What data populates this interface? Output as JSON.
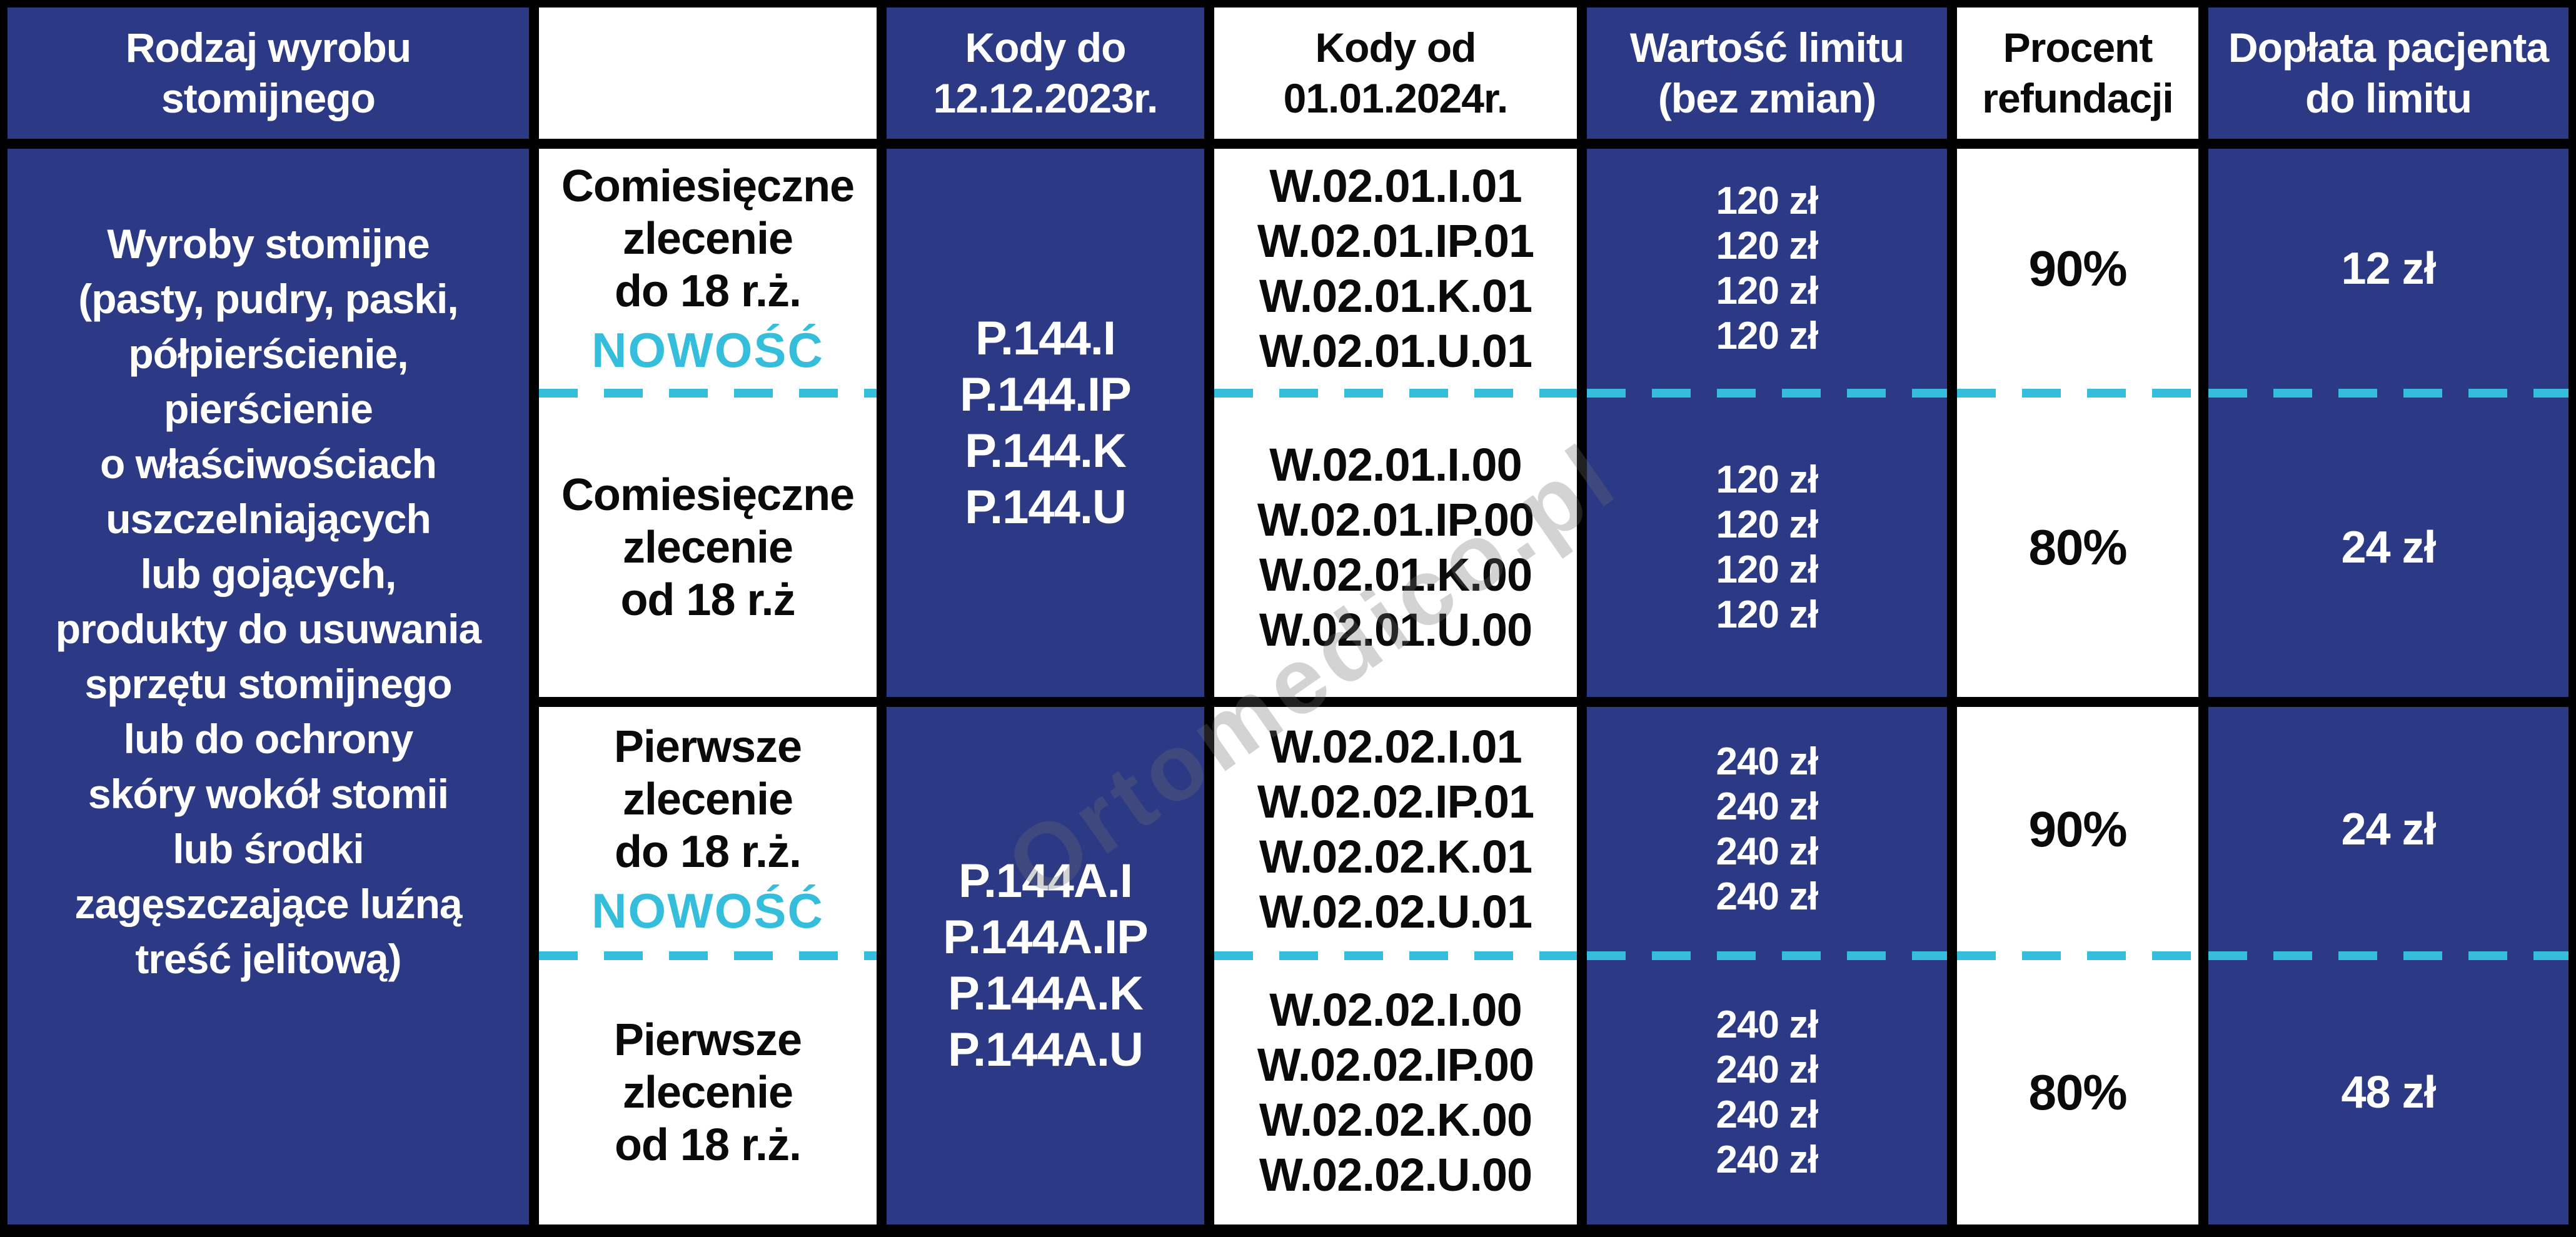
{
  "colors": {
    "navy": "#2c3a85",
    "cyan": "#35bedc",
    "grid": "#000000",
    "white": "#ffffff"
  },
  "header": {
    "product_type": "Rodzaj wyrobu\nstomijnego",
    "empty": "",
    "codes_old": "Kody do\n12.12.2023r.",
    "codes_new": "Kody od\n01.01.2024r.",
    "limit_value": "Wartość limitu\n(bez zmian)",
    "refund_percent": "Procent\nrefundacji",
    "patient_copay": "Dopłata pacjenta\ndo limitu"
  },
  "product": {
    "description": "Wyroby stomijne\n(pasty, pudry, paski,\npółpierścienie,\npierścienie\no właściwościach\nuszczelniających\nlub gojących,\nprodukty do usuwania\nsprzętu stomijnego\nlub do ochrony\nskóry wokół stomii\nlub środki\nzagęszczające luźną\ntreść jelitową)"
  },
  "sections": [
    {
      "order_top": {
        "text": "Comiesięczne\nzlecenie\ndo 18 r.ż.",
        "badge": "NOWOŚĆ"
      },
      "order_bottom": {
        "text": "Comiesięczne\nzlecenie\nod 18 r.ż"
      },
      "codes_old": [
        "P.144.I",
        "P.144.IP",
        "P.144.K",
        "P.144.U"
      ],
      "codes_new_top": [
        "W.02.01.I.01",
        "W.02.01.IP.01",
        "W.02.01.K.01",
        "W.02.01.U.01"
      ],
      "codes_new_bottom": [
        "W.02.01.I.00",
        "W.02.01.IP.00",
        "W.02.01.K.00",
        "W.02.01.U.00"
      ],
      "limits_top": [
        "120 zł",
        "120 zł",
        "120 zł",
        "120 zł"
      ],
      "limits_bottom": [
        "120 zł",
        "120 zł",
        "120 zł",
        "120 zł"
      ],
      "refund_top": "90%",
      "refund_bottom": "80%",
      "copay_top": "12 zł",
      "copay_bottom": "24 zł"
    },
    {
      "order_top": {
        "text": "Pierwsze\nzlecenie\ndo 18 r.ż.",
        "badge": "NOWOŚĆ"
      },
      "order_bottom": {
        "text": "Pierwsze\nzlecenie\nod 18 r.ż."
      },
      "codes_old": [
        "P.144A.I",
        "P.144A.IP",
        "P.144A.K",
        "P.144A.U"
      ],
      "codes_new_top": [
        "W.02.02.I.01",
        "W.02.02.IP.01",
        "W.02.02.K.01",
        "W.02.02.U.01"
      ],
      "codes_new_bottom": [
        "W.02.02.I.00",
        "W.02.02.IP.00",
        "W.02.02.K.00",
        "W.02.02.U.00"
      ],
      "limits_top": [
        "240 zł",
        "240 zł",
        "240 zł",
        "240 zł"
      ],
      "limits_bottom": [
        "240 zł",
        "240 zł",
        "240 zł",
        "240 zł"
      ],
      "refund_top": "90%",
      "refund_bottom": "80%",
      "copay_top": "24 zł",
      "copay_bottom": "48 zł"
    }
  ],
  "watermark": {
    "text": "Ortomedico.pl"
  }
}
